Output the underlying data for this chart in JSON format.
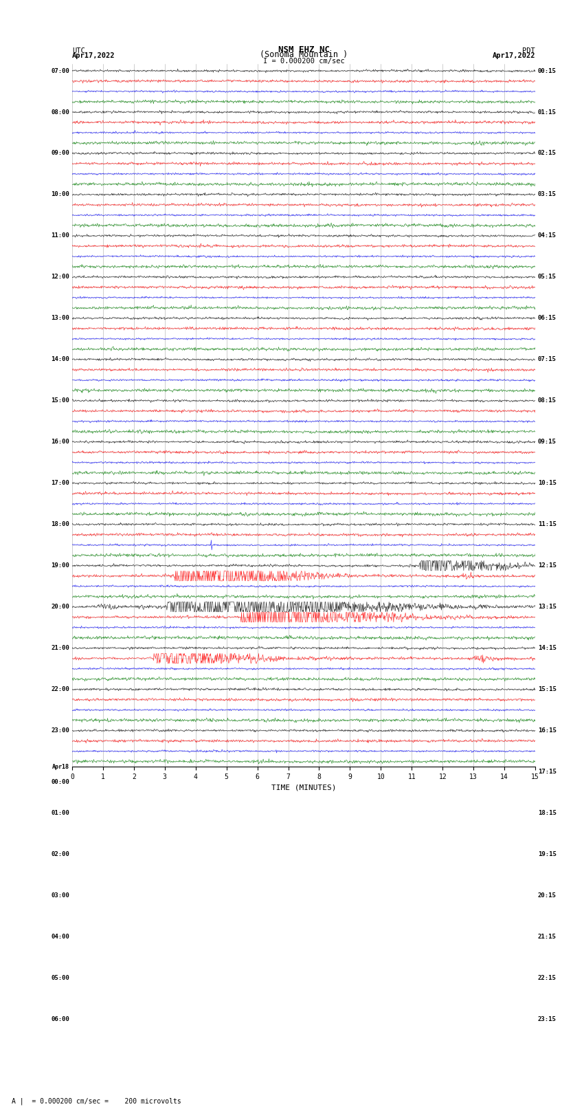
{
  "title_line1": "NSM EHZ NC",
  "title_line2": "(Sonoma Mountain )",
  "title_line3": "I = 0.000200 cm/sec",
  "left_label_top": "UTC",
  "left_label_date": "Apr17,2022",
  "right_label_top": "PDT",
  "right_label_date": "Apr17,2022",
  "xlabel": "TIME (MINUTES)",
  "footnote": "A |  = 0.000200 cm/sec =    200 microvolts",
  "utc_times": [
    "07:00",
    "",
    "",
    "",
    "08:00",
    "",
    "",
    "",
    "09:00",
    "",
    "",
    "",
    "10:00",
    "",
    "",
    "",
    "11:00",
    "",
    "",
    "",
    "12:00",
    "",
    "",
    "",
    "13:00",
    "",
    "",
    "",
    "14:00",
    "",
    "",
    "",
    "15:00",
    "",
    "",
    "",
    "16:00",
    "",
    "",
    "",
    "17:00",
    "",
    "",
    "",
    "18:00",
    "",
    "",
    "",
    "19:00",
    "",
    "",
    "",
    "20:00",
    "",
    "",
    "",
    "21:00",
    "",
    "",
    "",
    "22:00",
    "",
    "",
    "",
    "23:00",
    "",
    "",
    "",
    "Apr18",
    "00:00",
    "",
    "",
    "01:00",
    "",
    "",
    "",
    "02:00",
    "",
    "",
    "",
    "03:00",
    "",
    "",
    "",
    "04:00",
    "",
    "",
    "",
    "05:00",
    "",
    "",
    "",
    "06:00",
    "",
    "",
    ""
  ],
  "pdt_times": [
    "00:15",
    "",
    "",
    "",
    "01:15",
    "",
    "",
    "",
    "02:15",
    "",
    "",
    "",
    "03:15",
    "",
    "",
    "",
    "04:15",
    "",
    "",
    "",
    "05:15",
    "",
    "",
    "",
    "06:15",
    "",
    "",
    "",
    "07:15",
    "",
    "",
    "",
    "08:15",
    "",
    "",
    "",
    "09:15",
    "",
    "",
    "",
    "10:15",
    "",
    "",
    "",
    "11:15",
    "",
    "",
    "",
    "12:15",
    "",
    "",
    "",
    "13:15",
    "",
    "",
    "",
    "14:15",
    "",
    "",
    "",
    "15:15",
    "",
    "",
    "",
    "16:15",
    "",
    "",
    "",
    "17:15",
    "",
    "",
    "",
    "18:15",
    "",
    "",
    "",
    "19:15",
    "",
    "",
    "",
    "20:15",
    "",
    "",
    "",
    "21:15",
    "",
    "",
    "",
    "22:15",
    "",
    "",
    "",
    "23:15",
    "",
    "",
    ""
  ],
  "colors": [
    "black",
    "red",
    "blue",
    "green"
  ],
  "n_rows": 68,
  "n_minutes": 15,
  "samples_per_row": 900,
  "background_color": "white",
  "grid_color": "#aaaaaa",
  "amplitude_scale": 0.35,
  "large_black_rows": [
    48,
    52
  ],
  "large_red_rows": [
    49,
    57
  ],
  "very_large_rows": [
    49,
    52,
    53
  ],
  "spike_rows": [
    46
  ]
}
